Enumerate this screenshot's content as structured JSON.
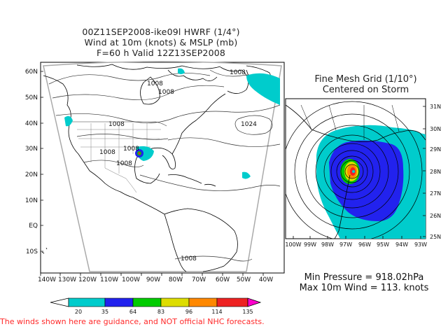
{
  "header": {
    "line1": "00Z11SEP2008-ike09l HWRF (1/4°)",
    "line2": "Wind at 10m (knots) & MSLP (mb)",
    "line3": "F=60 h Valid 12Z13SEP2008"
  },
  "fine_mesh": {
    "title1": "Fine Mesh Grid (1/10°)",
    "title2": "Centered on Storm",
    "lat_labels": [
      "31N",
      "30N",
      "29N",
      "28N",
      "27N",
      "26N",
      "25N"
    ],
    "lon_labels": [
      "100W",
      "99W",
      "98W",
      "97W",
      "96W",
      "95W",
      "94W",
      "93W"
    ]
  },
  "main_map": {
    "lat_labels": [
      "60N",
      "50N",
      "40N",
      "30N",
      "20N",
      "10N",
      "EQ",
      "10S"
    ],
    "lon_labels": [
      "140W",
      "130W",
      "120W",
      "110W",
      "100W",
      "90W",
      "80W",
      "70W",
      "60W",
      "50W",
      "40W"
    ],
    "isobar_labels": [
      "1008",
      "1008",
      "1008",
      "1008",
      "1008",
      "1008",
      "1024",
      "1008",
      "1008"
    ]
  },
  "stats": {
    "min_pressure": "Min Pressure = 918.02hPa",
    "max_wind": "Max 10m Wind = 113. knots"
  },
  "colorbar": {
    "labels": [
      "20",
      "35",
      "64",
      "83",
      "96",
      "114",
      "135"
    ],
    "colors": [
      "#00cccc",
      "#2222ee",
      "#00cc00",
      "#dddd00",
      "#ff8800",
      "#ee2222",
      "#ff00cc"
    ]
  },
  "disclaimer": "The winds shown here are guidance, and NOT official NHC forecasts."
}
